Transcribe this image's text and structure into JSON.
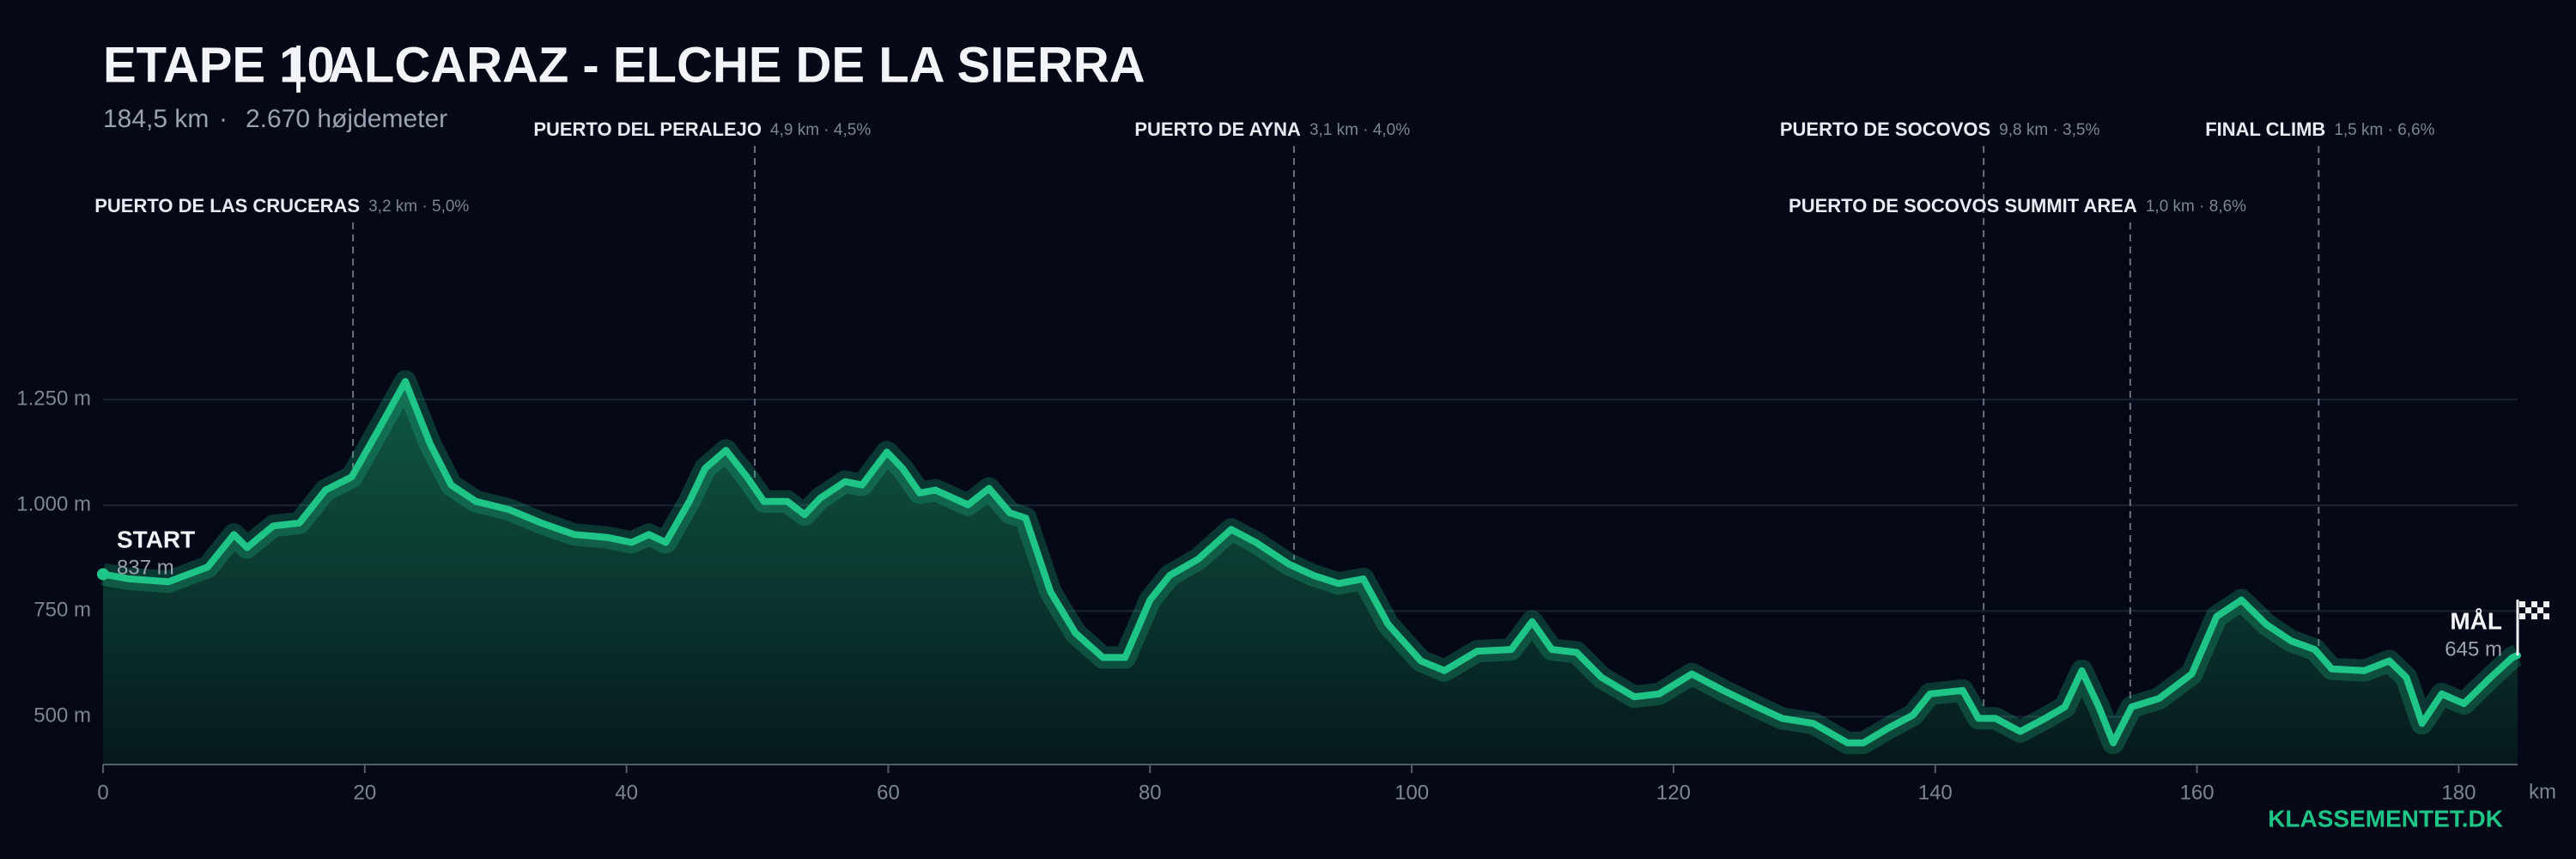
{
  "chart_data": {
    "type": "line",
    "title": "ETAPE 10",
    "route": "ALCARAZ - ELCHE DE LA SIERRA",
    "distance": "184,5 km",
    "climbing": "2.670 højdemeter",
    "brand": "KLASSEMENTET.DK",
    "x_label": "km",
    "start": {
      "label": "START",
      "elevation_label": "837 m"
    },
    "finish": {
      "label": "MÅL",
      "elevation_label": "645 m"
    },
    "color": "#1fc487",
    "grid": true,
    "x": [
      0,
      2,
      5,
      8,
      10,
      11,
      13,
      15,
      17,
      19,
      21,
      23.1,
      25,
      26.6,
      28.5,
      31,
      33.5,
      36,
      38.5,
      40.4,
      41.7,
      43,
      44.8,
      46,
      47.6,
      49.2,
      50.5,
      52.3,
      53.6,
      54.8,
      56.7,
      58,
      59.9,
      61.1,
      62.4,
      63.6,
      66.1,
      67.7,
      69.3,
      70.5,
      72.4,
      74.3,
      76.4,
      78.1,
      80,
      81.5,
      83.7,
      86.2,
      88.1,
      90.6,
      92.5,
      94.4,
      96.3,
      98.2,
      100.7,
      102.5,
      105,
      107.6,
      109.2,
      110.7,
      112.6,
      114.5,
      117,
      118.9,
      121.4,
      123.8,
      126.4,
      128.3,
      130.7,
      133.3,
      134.5,
      136.4,
      138.3,
      139.6,
      142.1,
      143.3,
      144.6,
      146.5,
      148.4,
      149.9,
      151.2,
      152.5,
      153.6,
      155,
      157.1,
      159.6,
      161.5,
      163.4,
      165.3,
      167.2,
      169,
      170.3,
      172.8,
      174.7,
      176,
      177.2,
      178.7,
      180.4,
      182.3,
      184.1,
      184.5
    ],
    "values": [
      837,
      826,
      819,
      854,
      931,
      900,
      951,
      958,
      1036,
      1067,
      1176,
      1293,
      1145,
      1048,
      1009,
      990,
      958,
      931,
      924,
      912,
      931,
      912,
      1009,
      1087,
      1130,
      1067,
      1009,
      1009,
      978,
      1017,
      1056,
      1048,
      1126,
      1087,
      1029,
      1036,
      1001,
      1040,
      982,
      970,
      795,
      698,
      640,
      640,
      776,
      834,
      873,
      943,
      912,
      861,
      834,
      815,
      826,
      718,
      632,
      609,
      655,
      659,
      725,
      659,
      652,
      593,
      547,
      554,
      601,
      562,
      523,
      496,
      484,
      438,
      438,
      473,
      504,
      554,
      562,
      496,
      496,
      465,
      496,
      523,
      609,
      523,
      438,
      523,
      543,
      601,
      737,
      776,
      718,
      679,
      659,
      613,
      609,
      632,
      593,
      484,
      554,
      531,
      589,
      640,
      645
    ],
    "xlim": [
      0,
      184.5
    ],
    "ylim": [
      387,
      1750
    ],
    "xticks": [
      0,
      20,
      40,
      60,
      80,
      100,
      120,
      140,
      160,
      180
    ],
    "yticks": [
      {
        "value": 500,
        "label": "500 m"
      },
      {
        "value": 750,
        "label": "750 m"
      },
      {
        "value": 1000,
        "label": "1.000 m"
      },
      {
        "value": 1250,
        "label": "1.250 m"
      }
    ],
    "climbs": [
      {
        "name": "PUERTO DE LAS CRUCERAS",
        "detail": "3,2 km · 5,0%",
        "km": 19.1,
        "row": 2
      },
      {
        "name": "PUERTO DEL PERALEJO",
        "detail": "4,9 km · 4,5%",
        "km": 49.8,
        "row": 1
      },
      {
        "name": "PUERTO DE AYNA",
        "detail": "3,1 km · 4,0%",
        "km": 91.0,
        "row": 1
      },
      {
        "name": "PUERTO DE SOCOVOS",
        "detail": "9,8 km · 3,5%",
        "km": 143.7,
        "row": 1
      },
      {
        "name": "PUERTO DE SOCOVOS SUMMIT AREA",
        "detail": "1,0 km · 8,6%",
        "km": 154.9,
        "row": 2
      },
      {
        "name": "FINAL CLIMB",
        "detail": "1,5 km · 6,6%",
        "km": 169.3,
        "row": 1
      }
    ]
  }
}
